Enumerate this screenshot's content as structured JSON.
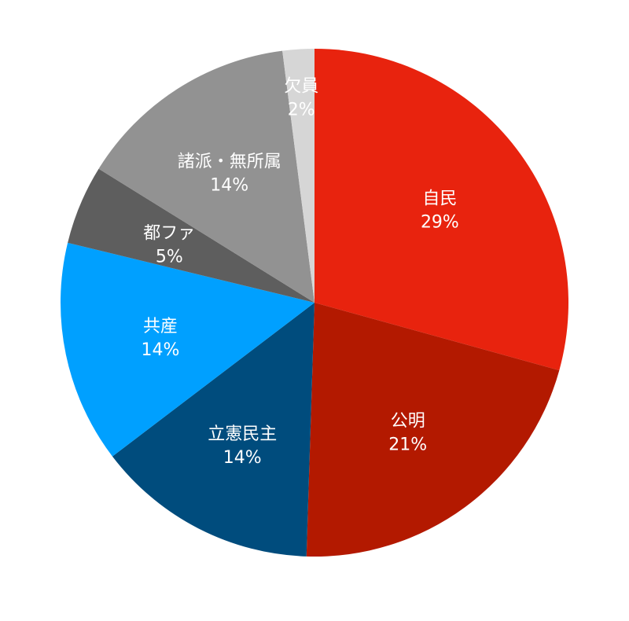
{
  "chart_data": {
    "type": "pie",
    "title": "",
    "start_angle_deg": 0,
    "direction": "clockwise",
    "slices": [
      {
        "label": "自民",
        "value": 29,
        "value_label": "29%",
        "color": "#E8230E"
      },
      {
        "label": "公明",
        "value": 21,
        "value_label": "21%",
        "color": "#B31900"
      },
      {
        "label": "立憲民主",
        "value": 14,
        "value_label": "14%",
        "color": "#004C7D"
      },
      {
        "label": "共産",
        "value": 14,
        "value_label": "14%",
        "color": "#00A0FF"
      },
      {
        "label": "都ファ",
        "value": 5,
        "value_label": "5%",
        "color": "#5E5E5E"
      },
      {
        "label": "諸派・無所属",
        "value": 14,
        "value_label": "14%",
        "color": "#929292"
      },
      {
        "label": "欠員",
        "value": 2,
        "value_label": "2%",
        "color": "#D6D6D6"
      }
    ]
  }
}
